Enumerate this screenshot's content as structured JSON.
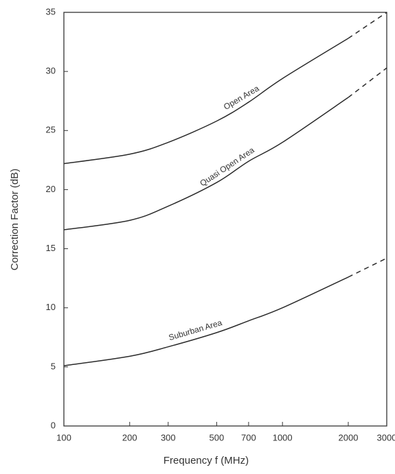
{
  "chart_data": {
    "type": "line",
    "x_label": "Frequency f (MHz)",
    "y_label": "Correction Factor (dB)",
    "x": [
      100,
      200,
      300,
      500,
      700,
      1000,
      2000,
      3000
    ],
    "series": [
      {
        "name": "Open Area",
        "color": "#2a2a2a",
        "values": [
          22.2,
          23,
          24,
          25.8,
          27.4,
          29.4,
          32.8,
          35
        ]
      },
      {
        "name": "Quasi Open Area",
        "color": "#2a2a2a",
        "values": [
          16.6,
          17.4,
          18.6,
          20.6,
          22.4,
          24,
          27.8,
          30.3
        ]
      },
      {
        "name": "Suburban Area",
        "color": "#2a2a2a",
        "values": [
          5.1,
          5.9,
          6.7,
          7.9,
          8.9,
          10,
          12.6,
          14.2
        ]
      }
    ],
    "dashed_from": 2000,
    "xlim": [
      100,
      3000
    ],
    "xticks": [
      100,
      200,
      300,
      500,
      700,
      1000,
      2000,
      3000
    ],
    "xscale": "log",
    "ylim": [
      0,
      35
    ],
    "yticks": [
      0,
      5,
      10,
      15,
      20,
      25,
      30,
      35
    ],
    "grid": false
  }
}
